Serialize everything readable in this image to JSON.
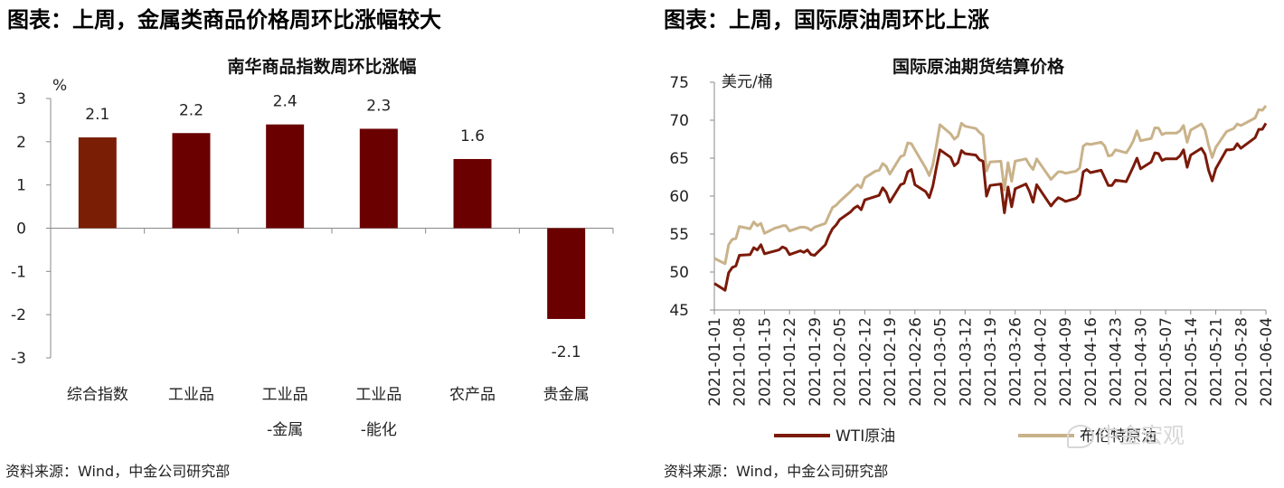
{
  "left": {
    "heading": "图表：上周，金属类商品价格周环比涨幅较大",
    "source": "资料来源：Wind，中金公司研究部"
  },
  "right": {
    "heading": "图表：上周，国际原油周环比上涨",
    "source": "资料来源：Wind，中金公司研究部"
  },
  "watermark": "中金宏观",
  "chart_data": [
    {
      "type": "bar",
      "title": "南华商品指数周环比涨幅",
      "ylabel": "%",
      "ylim": [
        -3,
        3
      ],
      "yticks": [
        "3",
        "2",
        "1",
        "0",
        "-1",
        "-2",
        "-3"
      ],
      "categories": [
        [
          "综合指数"
        ],
        [
          "工业品"
        ],
        [
          "工业品",
          "-金属"
        ],
        [
          "工业品",
          "-能化"
        ],
        [
          "农产品"
        ],
        [
          "贵金属"
        ]
      ],
      "values": [
        2.1,
        2.2,
        2.4,
        2.3,
        1.6,
        -2.1
      ],
      "data_labels": [
        "2.1",
        "2.2",
        "2.4",
        "2.3",
        "1.6",
        "-2.1"
      ],
      "colors": [
        "#7a1e06",
        "#6b0000",
        "#6b0000",
        "#6b0000",
        "#6b0000",
        "#6b0000"
      ],
      "grid": false
    },
    {
      "type": "line",
      "title": "国际原油期货结算价格",
      "ylabel": "美元/桶",
      "ylim": [
        45,
        75
      ],
      "yticks": [
        "75",
        "70",
        "65",
        "60",
        "55",
        "50",
        "45"
      ],
      "xlim": [
        "2021-01-01",
        "2021-06-04"
      ],
      "xticks": [
        "2021-01-01",
        "2021-01-08",
        "2021-01-15",
        "2021-01-22",
        "2021-01-29",
        "2021-02-05",
        "2021-02-12",
        "2021-02-19",
        "2021-02-26",
        "2021-03-05",
        "2021-03-12",
        "2021-03-19",
        "2021-03-26",
        "2021-04-02",
        "2021-04-09",
        "2021-04-16",
        "2021-04-23",
        "2021-04-30",
        "2021-05-07",
        "2021-05-14",
        "2021-05-21",
        "2021-05-28",
        "2021-06-04"
      ],
      "grid": false,
      "legend": "bottom",
      "series": [
        {
          "name": "WTI原油",
          "color": "#7b1a0a",
          "points": [
            [
              "2021-01-01",
              48.5
            ],
            [
              "2021-01-04",
              47.6
            ],
            [
              "2021-01-05",
              49.9
            ],
            [
              "2021-01-06",
              50.6
            ],
            [
              "2021-01-07",
              50.8
            ],
            [
              "2021-01-08",
              52.2
            ],
            [
              "2021-01-11",
              52.3
            ],
            [
              "2021-01-12",
              53.2
            ],
            [
              "2021-01-13",
              52.9
            ],
            [
              "2021-01-14",
              53.6
            ],
            [
              "2021-01-15",
              52.4
            ],
            [
              "2021-01-19",
              52.9
            ],
            [
              "2021-01-20",
              53.3
            ],
            [
              "2021-01-21",
              53.1
            ],
            [
              "2021-01-22",
              52.3
            ],
            [
              "2021-01-25",
              52.8
            ],
            [
              "2021-01-26",
              52.6
            ],
            [
              "2021-01-27",
              52.9
            ],
            [
              "2021-01-28",
              52.3
            ],
            [
              "2021-01-29",
              52.2
            ],
            [
              "2021-02-01",
              53.6
            ],
            [
              "2021-02-02",
              54.8
            ],
            [
              "2021-02-03",
              55.7
            ],
            [
              "2021-02-04",
              56.2
            ],
            [
              "2021-02-05",
              56.9
            ],
            [
              "2021-02-08",
              57.9
            ],
            [
              "2021-02-09",
              58.4
            ],
            [
              "2021-02-10",
              58.7
            ],
            [
              "2021-02-11",
              58.2
            ],
            [
              "2021-02-12",
              59.5
            ],
            [
              "2021-02-16",
              60.1
            ],
            [
              "2021-02-17",
              61.1
            ],
            [
              "2021-02-18",
              60.5
            ],
            [
              "2021-02-19",
              59.2
            ],
            [
              "2021-02-22",
              61.5
            ],
            [
              "2021-02-23",
              61.7
            ],
            [
              "2021-02-24",
              63.2
            ],
            [
              "2021-02-25",
              63.5
            ],
            [
              "2021-02-26",
              61.5
            ],
            [
              "2021-03-01",
              60.6
            ],
            [
              "2021-03-02",
              59.8
            ],
            [
              "2021-03-03",
              61.3
            ],
            [
              "2021-03-04",
              63.8
            ],
            [
              "2021-03-05",
              66.1
            ],
            [
              "2021-03-08",
              65.1
            ],
            [
              "2021-03-09",
              64.0
            ],
            [
              "2021-03-10",
              64.4
            ],
            [
              "2021-03-11",
              66.0
            ],
            [
              "2021-03-12",
              65.6
            ],
            [
              "2021-03-15",
              65.4
            ],
            [
              "2021-03-16",
              64.8
            ],
            [
              "2021-03-17",
              64.6
            ],
            [
              "2021-03-18",
              60.0
            ],
            [
              "2021-03-19",
              61.4
            ],
            [
              "2021-03-22",
              61.6
            ],
            [
              "2021-03-23",
              57.8
            ],
            [
              "2021-03-24",
              61.2
            ],
            [
              "2021-03-25",
              58.6
            ],
            [
              "2021-03-26",
              60.97
            ],
            [
              "2021-03-29",
              61.6
            ],
            [
              "2021-03-30",
              60.6
            ],
            [
              "2021-03-31",
              59.2
            ],
            [
              "2021-04-01",
              61.5
            ],
            [
              "2021-04-05",
              58.7
            ],
            [
              "2021-04-06",
              59.3
            ],
            [
              "2021-04-07",
              59.8
            ],
            [
              "2021-04-08",
              59.6
            ],
            [
              "2021-04-09",
              59.3
            ],
            [
              "2021-04-12",
              59.7
            ],
            [
              "2021-04-13",
              60.2
            ],
            [
              "2021-04-14",
              63.2
            ],
            [
              "2021-04-15",
              63.5
            ],
            [
              "2021-04-16",
              63.1
            ],
            [
              "2021-04-19",
              63.4
            ],
            [
              "2021-04-20",
              62.4
            ],
            [
              "2021-04-21",
              61.4
            ],
            [
              "2021-04-22",
              61.4
            ],
            [
              "2021-04-23",
              62.1
            ],
            [
              "2021-04-26",
              61.9
            ],
            [
              "2021-04-27",
              62.9
            ],
            [
              "2021-04-28",
              63.9
            ],
            [
              "2021-04-29",
              65.0
            ],
            [
              "2021-04-30",
              63.6
            ],
            [
              "2021-05-03",
              64.5
            ],
            [
              "2021-05-04",
              65.7
            ],
            [
              "2021-05-05",
              65.6
            ],
            [
              "2021-05-06",
              64.7
            ],
            [
              "2021-05-07",
              64.9
            ],
            [
              "2021-05-10",
              64.9
            ],
            [
              "2021-05-11",
              65.3
            ],
            [
              "2021-05-12",
              66.1
            ],
            [
              "2021-05-13",
              63.8
            ],
            [
              "2021-05-14",
              65.4
            ],
            [
              "2021-05-17",
              66.3
            ],
            [
              "2021-05-18",
              65.5
            ],
            [
              "2021-05-19",
              63.4
            ],
            [
              "2021-05-20",
              62.0
            ],
            [
              "2021-05-21",
              63.6
            ],
            [
              "2021-05-24",
              66.1
            ],
            [
              "2021-05-25",
              66.1
            ],
            [
              "2021-05-26",
              66.2
            ],
            [
              "2021-05-27",
              66.9
            ],
            [
              "2021-05-28",
              66.3
            ],
            [
              "2021-06-01",
              67.7
            ],
            [
              "2021-06-02",
              68.8
            ],
            [
              "2021-06-03",
              68.8
            ],
            [
              "2021-06-04",
              69.6
            ]
          ]
        },
        {
          "name": "布伦特原油",
          "color": "#c9b28a",
          "points": [
            [
              "2021-01-01",
              51.8
            ],
            [
              "2021-01-04",
              51.1
            ],
            [
              "2021-01-05",
              53.6
            ],
            [
              "2021-01-06",
              54.3
            ],
            [
              "2021-01-07",
              54.4
            ],
            [
              "2021-01-08",
              56.0
            ],
            [
              "2021-01-11",
              55.7
            ],
            [
              "2021-01-12",
              56.6
            ],
            [
              "2021-01-13",
              56.1
            ],
            [
              "2021-01-14",
              56.4
            ],
            [
              "2021-01-15",
              55.1
            ],
            [
              "2021-01-18",
              55.8
            ],
            [
              "2021-01-19",
              55.9
            ],
            [
              "2021-01-20",
              56.1
            ],
            [
              "2021-01-21",
              56.1
            ],
            [
              "2021-01-22",
              55.4
            ],
            [
              "2021-01-25",
              55.9
            ],
            [
              "2021-01-26",
              55.9
            ],
            [
              "2021-01-27",
              55.8
            ],
            [
              "2021-01-28",
              55.5
            ],
            [
              "2021-01-29",
              55.9
            ],
            [
              "2021-02-01",
              56.4
            ],
            [
              "2021-02-02",
              57.5
            ],
            [
              "2021-02-03",
              58.5
            ],
            [
              "2021-02-04",
              58.8
            ],
            [
              "2021-02-05",
              59.3
            ],
            [
              "2021-02-08",
              60.6
            ],
            [
              "2021-02-09",
              61.1
            ],
            [
              "2021-02-10",
              61.5
            ],
            [
              "2021-02-11",
              61.1
            ],
            [
              "2021-02-12",
              62.4
            ],
            [
              "2021-02-15",
              63.3
            ],
            [
              "2021-02-16",
              63.4
            ],
            [
              "2021-02-17",
              64.3
            ],
            [
              "2021-02-18",
              63.9
            ],
            [
              "2021-02-19",
              62.9
            ],
            [
              "2021-02-22",
              65.2
            ],
            [
              "2021-02-23",
              65.4
            ],
            [
              "2021-02-24",
              67.0
            ],
            [
              "2021-02-25",
              66.9
            ],
            [
              "2021-02-26",
              66.1
            ],
            [
              "2021-03-01",
              63.7
            ],
            [
              "2021-03-02",
              62.7
            ],
            [
              "2021-03-03",
              64.1
            ],
            [
              "2021-03-04",
              66.7
            ],
            [
              "2021-03-05",
              69.4
            ],
            [
              "2021-03-08",
              68.2
            ],
            [
              "2021-03-09",
              67.5
            ],
            [
              "2021-03-10",
              67.9
            ],
            [
              "2021-03-11",
              69.6
            ],
            [
              "2021-03-12",
              69.2
            ],
            [
              "2021-03-15",
              68.9
            ],
            [
              "2021-03-16",
              68.4
            ],
            [
              "2021-03-17",
              68.0
            ],
            [
              "2021-03-18",
              63.3
            ],
            [
              "2021-03-19",
              64.5
            ],
            [
              "2021-03-22",
              64.6
            ],
            [
              "2021-03-23",
              60.8
            ],
            [
              "2021-03-24",
              64.4
            ],
            [
              "2021-03-25",
              61.95
            ],
            [
              "2021-03-26",
              64.6
            ],
            [
              "2021-03-29",
              64.9
            ],
            [
              "2021-03-30",
              64.1
            ],
            [
              "2021-03-31",
              63.5
            ],
            [
              "2021-04-01",
              64.9
            ],
            [
              "2021-04-05",
              62.2
            ],
            [
              "2021-04-06",
              62.7
            ],
            [
              "2021-04-07",
              63.2
            ],
            [
              "2021-04-08",
              63.2
            ],
            [
              "2021-04-09",
              63.0
            ],
            [
              "2021-04-12",
              63.3
            ],
            [
              "2021-04-13",
              63.7
            ],
            [
              "2021-04-14",
              66.6
            ],
            [
              "2021-04-15",
              66.9
            ],
            [
              "2021-04-16",
              66.8
            ],
            [
              "2021-04-19",
              67.1
            ],
            [
              "2021-04-20",
              66.6
            ],
            [
              "2021-04-21",
              65.3
            ],
            [
              "2021-04-22",
              65.4
            ],
            [
              "2021-04-23",
              66.1
            ],
            [
              "2021-04-26",
              65.7
            ],
            [
              "2021-04-27",
              66.4
            ],
            [
              "2021-04-28",
              67.3
            ],
            [
              "2021-04-29",
              68.6
            ],
            [
              "2021-04-30",
              67.3
            ],
            [
              "2021-05-03",
              67.6
            ],
            [
              "2021-05-04",
              69.0
            ],
            [
              "2021-05-05",
              68.96
            ],
            [
              "2021-05-06",
              68.1
            ],
            [
              "2021-05-07",
              68.3
            ],
            [
              "2021-05-10",
              68.3
            ],
            [
              "2021-05-11",
              68.6
            ],
            [
              "2021-05-12",
              69.3
            ],
            [
              "2021-05-13",
              67.1
            ],
            [
              "2021-05-14",
              68.7
            ],
            [
              "2021-05-17",
              69.5
            ],
            [
              "2021-05-18",
              68.7
            ],
            [
              "2021-05-19",
              66.7
            ],
            [
              "2021-05-20",
              65.1
            ],
            [
              "2021-05-21",
              66.4
            ],
            [
              "2021-05-24",
              68.5
            ],
            [
              "2021-05-25",
              68.7
            ],
            [
              "2021-05-26",
              68.9
            ],
            [
              "2021-05-27",
              69.5
            ],
            [
              "2021-05-28",
              69.3
            ],
            [
              "2021-06-01",
              70.3
            ],
            [
              "2021-06-02",
              71.4
            ],
            [
              "2021-06-03",
              71.3
            ],
            [
              "2021-06-04",
              71.9
            ]
          ]
        }
      ]
    }
  ]
}
